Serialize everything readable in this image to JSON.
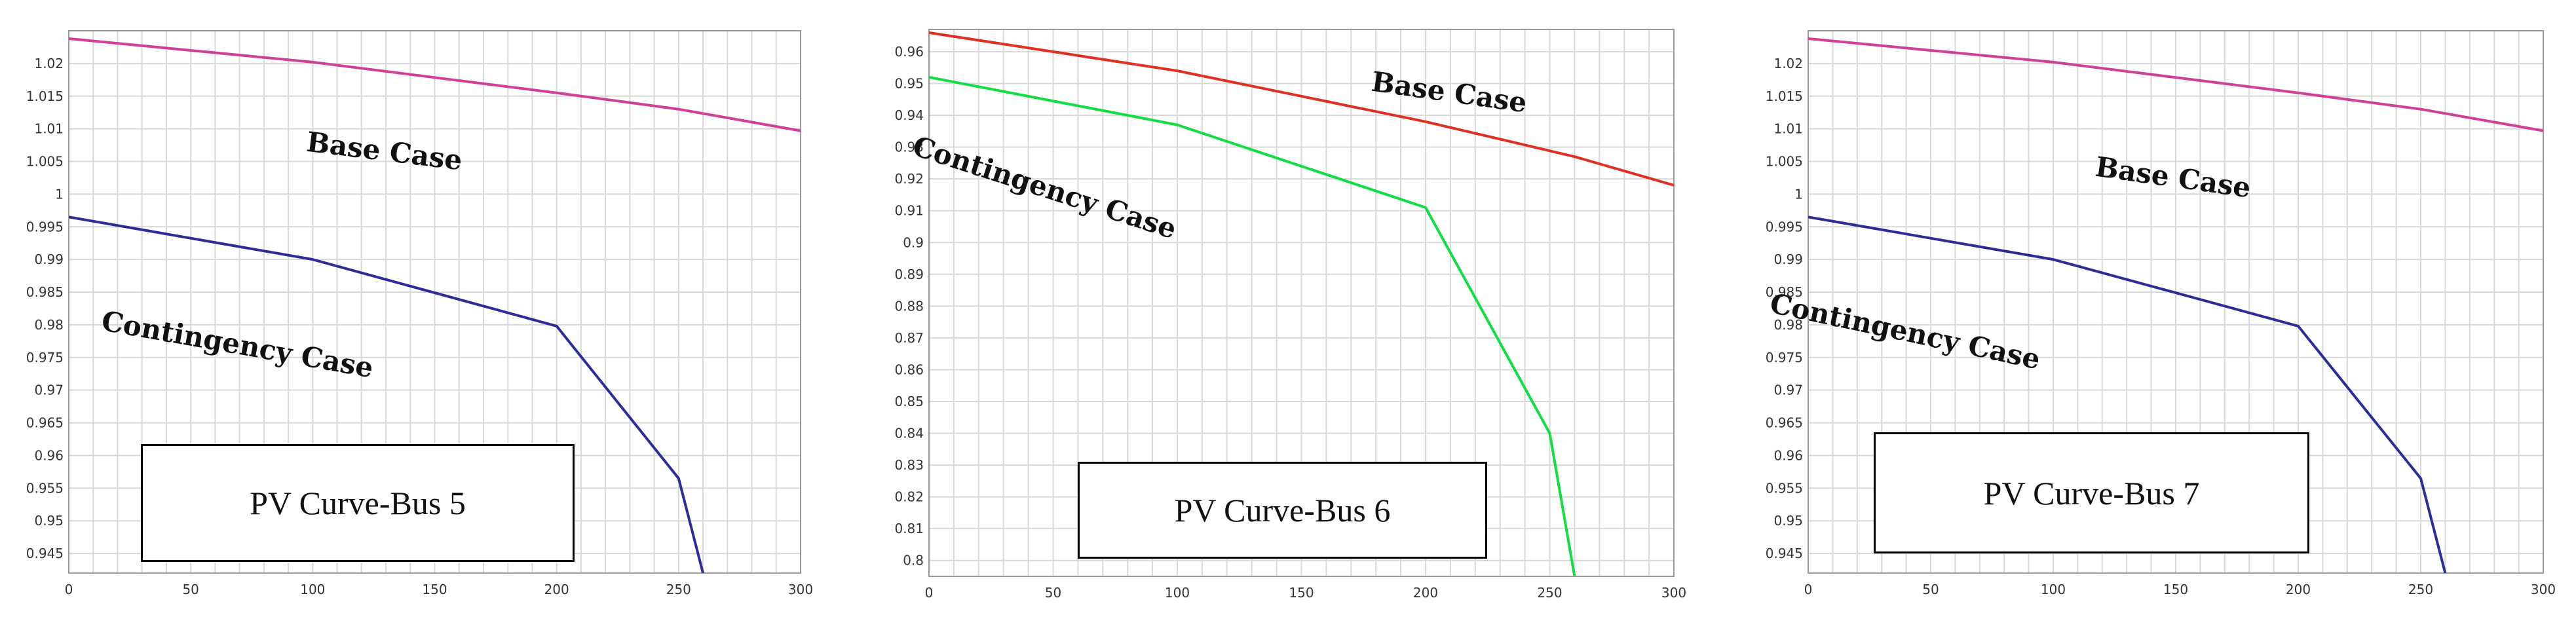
{
  "colors": {
    "base_case_pink": "#d0409a",
    "contingency_blue": "#2d2d9a",
    "base_case_red": "#e03020",
    "contingency_green": "#11dd44",
    "grid": "#d8d8d8"
  },
  "chart_data": [
    {
      "type": "line",
      "title": "PV Curve-Bus 5",
      "xlabel": "",
      "ylabel": "",
      "xlim": [
        0,
        300
      ],
      "ylim": [
        0.942,
        1.025
      ],
      "grid": true,
      "x_ticks": [
        "0",
        "50",
        "100",
        "150",
        "200",
        "250",
        "300"
      ],
      "y_ticks": [
        "1.02",
        "1.015",
        "1.01",
        "1.005",
        "1",
        "0.995",
        "0.99",
        "0.985",
        "0.98",
        "0.975",
        "0.97",
        "0.965",
        "0.96",
        "0.955",
        "0.95",
        "0.945"
      ],
      "annotations": [
        "Base Case",
        "Contingency Case"
      ],
      "series": [
        {
          "key": "base",
          "color": "#d0409a",
          "x": [
            0,
            100,
            200,
            250,
            300
          ],
          "y": [
            1.0238,
            1.0202,
            1.0155,
            1.013,
            1.0097
          ]
        },
        {
          "key": "contingency",
          "color": "#2d2d9a",
          "x": [
            0,
            100,
            200,
            250,
            260
          ],
          "y": [
            0.9965,
            0.99,
            0.9798,
            0.9565,
            0.942
          ]
        }
      ]
    },
    {
      "type": "line",
      "title": "PV Curve-Bus 6",
      "xlabel": "",
      "ylabel": "",
      "xlim": [
        0,
        300
      ],
      "ylim": [
        0.795,
        0.967
      ],
      "grid": true,
      "x_ticks": [
        "0",
        "50",
        "100",
        "150",
        "200",
        "250",
        "300"
      ],
      "y_ticks": [
        "0.96",
        "0.95",
        "0.94",
        "0.93",
        "0.92",
        "0.91",
        "0.9",
        "0.89",
        "0.88",
        "0.87",
        "0.86",
        "0.85",
        "0.84",
        "0.83",
        "0.82",
        "0.81",
        "0.8"
      ],
      "annotations": [
        "Base Case",
        "Contingency Case"
      ],
      "series": [
        {
          "key": "base",
          "color": "#e03020",
          "x": [
            0,
            100,
            200,
            260,
            300
          ],
          "y": [
            0.966,
            0.954,
            0.938,
            0.927,
            0.918
          ]
        },
        {
          "key": "contingency",
          "color": "#11dd44",
          "x": [
            0,
            100,
            200,
            250,
            260
          ],
          "y": [
            0.952,
            0.937,
            0.911,
            0.84,
            0.795
          ]
        }
      ]
    },
    {
      "type": "line",
      "title": "PV Curve-Bus 7",
      "xlabel": "",
      "ylabel": "",
      "xlim": [
        0,
        300
      ],
      "ylim": [
        0.942,
        1.025
      ],
      "grid": true,
      "x_ticks": [
        "0",
        "50",
        "100",
        "150",
        "200",
        "250",
        "300"
      ],
      "y_ticks": [
        "1.02",
        "1.015",
        "1.01",
        "1.005",
        "1",
        "0.995",
        "0.99",
        "0.985",
        "0.98",
        "0.975",
        "0.97",
        "0.965",
        "0.96",
        "0.955",
        "0.95",
        "0.945"
      ],
      "annotations": [
        "Base Case",
        "Contingency Case"
      ],
      "series": [
        {
          "key": "base",
          "color": "#d0409a",
          "x": [
            0,
            100,
            200,
            250,
            300
          ],
          "y": [
            1.0238,
            1.0202,
            1.0155,
            1.013,
            1.0097
          ]
        },
        {
          "key": "contingency",
          "color": "#2d2d9a",
          "x": [
            0,
            100,
            200,
            250,
            260
          ],
          "y": [
            0.9965,
            0.99,
            0.9798,
            0.9565,
            0.942
          ]
        }
      ]
    }
  ]
}
